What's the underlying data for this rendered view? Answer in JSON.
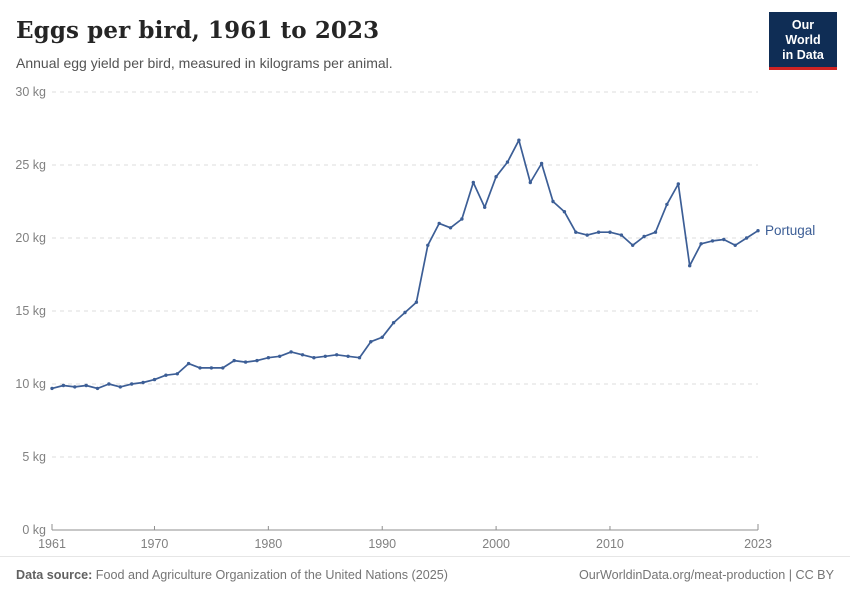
{
  "header": {
    "title": "Eggs per bird, 1961 to 2023",
    "subtitle": "Annual egg yield per bird, measured in kilograms per animal.",
    "logo": {
      "line1": "Our World",
      "line2": "in Data",
      "bg_color": "#0f2d55",
      "accent_color": "#cd2323"
    }
  },
  "chart_data": {
    "type": "line",
    "title": "Eggs per bird, 1961 to 2023",
    "xlabel": "",
    "ylabel": "kg",
    "x": [
      1961,
      1962,
      1963,
      1964,
      1965,
      1966,
      1967,
      1968,
      1969,
      1970,
      1971,
      1972,
      1973,
      1974,
      1975,
      1976,
      1977,
      1978,
      1979,
      1980,
      1981,
      1982,
      1983,
      1984,
      1985,
      1986,
      1987,
      1988,
      1989,
      1990,
      1991,
      1992,
      1993,
      1994,
      1995,
      1996,
      1997,
      1998,
      1999,
      2000,
      2001,
      2002,
      2003,
      2004,
      2005,
      2006,
      2007,
      2008,
      2009,
      2010,
      2011,
      2012,
      2013,
      2014,
      2015,
      2016,
      2017,
      2018,
      2019,
      2020,
      2021,
      2022,
      2023
    ],
    "series": [
      {
        "name": "Portugal",
        "color": "#3C5E96",
        "values": [
          9.7,
          9.9,
          9.8,
          9.9,
          9.7,
          10.0,
          9.8,
          10.0,
          10.1,
          10.3,
          10.6,
          10.7,
          11.4,
          11.1,
          11.1,
          11.1,
          11.6,
          11.5,
          11.6,
          11.8,
          11.9,
          12.2,
          12.0,
          11.8,
          11.9,
          12.0,
          11.9,
          11.8,
          12.9,
          13.2,
          14.2,
          14.9,
          15.6,
          19.5,
          21.0,
          20.7,
          21.3,
          23.8,
          22.1,
          24.2,
          25.2,
          26.7,
          23.8,
          25.1,
          22.5,
          21.8,
          20.4,
          20.2,
          20.4,
          20.4,
          20.2,
          19.5,
          20.1,
          20.4,
          22.3,
          23.7,
          18.1,
          19.6,
          19.8,
          19.9,
          19.5,
          20.0,
          20.5
        ]
      }
    ],
    "xlim": [
      1961,
      2023
    ],
    "ylim": [
      0,
      30
    ],
    "xticks": [
      1961,
      1970,
      1980,
      1990,
      2000,
      2010,
      2023
    ],
    "yticks": [
      0,
      5,
      10,
      15,
      20,
      25,
      30
    ],
    "ytick_suffix": " kg",
    "grid": "horizontal-dashed",
    "legend": "line-end-label",
    "colors": {
      "grid": "#dcdcdc",
      "axis": "#8f8f8f",
      "tick_text": "#818181"
    }
  },
  "footer": {
    "source_label": "Data source:",
    "source_text": " Food and Agriculture Organization of the United Nations (2025)",
    "credit": "OurWorldinData.org/meat-production | CC BY"
  }
}
